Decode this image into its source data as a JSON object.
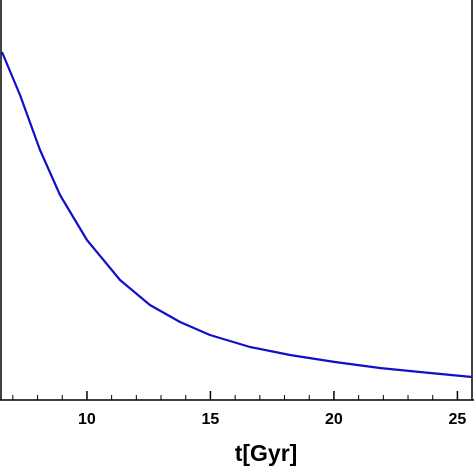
{
  "chart_data": {
    "type": "line",
    "xlabel": "t[Gyr]",
    "xlim": [
      6.48,
      25.59
    ],
    "ylim": [
      0,
      1
    ],
    "xticks": [
      10,
      15,
      20,
      25
    ],
    "xminorticks": [
      7,
      8,
      9,
      11,
      12,
      13,
      14,
      16,
      17,
      18,
      19,
      21,
      22,
      23,
      24
    ],
    "x": [
      6.56,
      7.29,
      8.1,
      8.91,
      10,
      11.34,
      12.55,
      13.77,
      14.98,
      16.6,
      18.22,
      20.04,
      21.86,
      23.48,
      25.59
    ],
    "series": [
      {
        "color": "#1010c8",
        "values": [
          0.87,
          0.7625,
          0.625,
          0.5125,
          0.4,
          0.3,
          0.2375,
          0.195,
          0.1625,
          0.1325,
          0.1125,
          0.095,
          0.08,
          0.07,
          0.0575
        ]
      }
    ]
  }
}
